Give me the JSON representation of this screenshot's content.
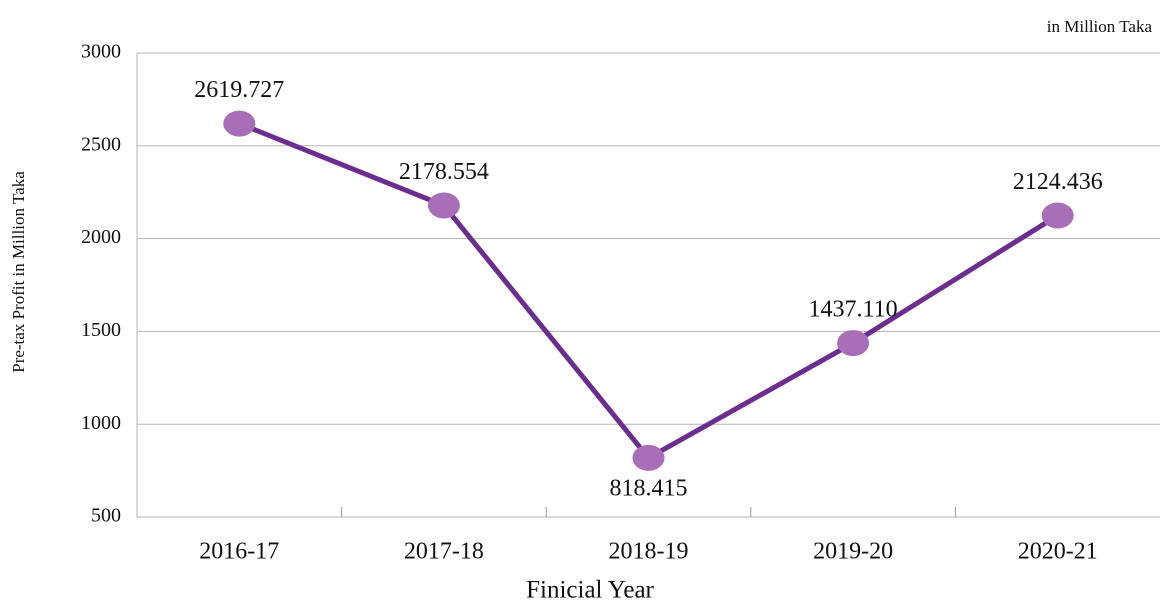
{
  "chart_data": {
    "type": "line",
    "annotation": "in Million Taka",
    "y_label": "Pre-tax Profit in Million Taka",
    "x_label": "Finicial Year",
    "categories": [
      "2016-17",
      "2017-18",
      "2018-19",
      "2019-20",
      "2020-21"
    ],
    "series": [
      {
        "name": "Pre-tax Profit",
        "color": "#6b2d8f",
        "marker_color": "#a86fb8",
        "values": [
          2619.727,
          2178.554,
          818.415,
          1437.11,
          2124.436
        ],
        "value_labels": [
          "2619.727",
          "2178.554",
          "818.415",
          "1437.110",
          "2124.436"
        ]
      }
    ],
    "ylim": [
      500,
      3000
    ],
    "yticks": [
      500,
      1000,
      1500,
      2000,
      2500,
      3000
    ],
    "grid": true
  }
}
